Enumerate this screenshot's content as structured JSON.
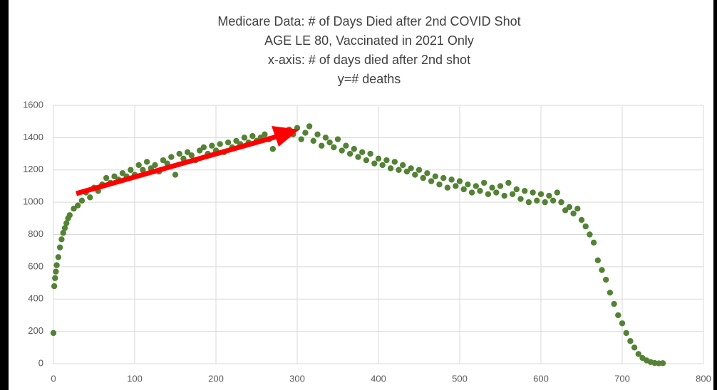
{
  "chart_data": {
    "type": "scatter",
    "title": "Medicare Data: # of Days Died after 2nd COVID Shot",
    "subtitle": [
      "AGE LE 80, Vaccinated in 2021 Only",
      "x-axis: # of days died after 2nd shot",
      "y=# deaths"
    ],
    "color": "#548235",
    "grid": true,
    "xlim": [
      0,
      800
    ],
    "xticks": [
      0,
      100,
      200,
      300,
      400,
      500,
      600,
      700,
      800
    ],
    "ylim": [
      0,
      1600
    ],
    "yticks": [
      0,
      200,
      400,
      600,
      800,
      1000,
      1200,
      1400,
      1600
    ],
    "x": [
      0,
      1,
      2,
      3,
      4,
      6,
      8,
      10,
      12,
      14,
      16,
      18,
      20,
      25,
      30,
      35,
      40,
      45,
      50,
      55,
      60,
      65,
      70,
      75,
      80,
      85,
      90,
      95,
      100,
      105,
      110,
      115,
      120,
      125,
      130,
      135,
      140,
      145,
      150,
      155,
      160,
      165,
      170,
      175,
      180,
      185,
      190,
      195,
      200,
      205,
      210,
      215,
      220,
      225,
      230,
      235,
      240,
      245,
      250,
      255,
      260,
      265,
      270,
      275,
      280,
      285,
      290,
      295,
      300,
      305,
      310,
      315,
      320,
      325,
      330,
      335,
      340,
      345,
      350,
      355,
      360,
      365,
      370,
      375,
      380,
      385,
      390,
      395,
      400,
      405,
      410,
      415,
      420,
      425,
      430,
      435,
      440,
      445,
      450,
      455,
      460,
      465,
      470,
      475,
      480,
      485,
      490,
      495,
      500,
      505,
      510,
      515,
      520,
      525,
      530,
      535,
      540,
      545,
      550,
      555,
      560,
      565,
      570,
      575,
      580,
      585,
      590,
      595,
      600,
      605,
      610,
      615,
      620,
      625,
      630,
      635,
      640,
      645,
      650,
      655,
      660,
      665,
      670,
      675,
      680,
      685,
      690,
      695,
      700,
      705,
      710,
      715,
      720,
      725,
      730,
      735,
      740,
      745,
      750
    ],
    "values": [
      190,
      480,
      530,
      570,
      610,
      660,
      720,
      770,
      810,
      840,
      870,
      900,
      920,
      960,
      980,
      1010,
      1060,
      1030,
      1090,
      1070,
      1110,
      1150,
      1120,
      1160,
      1140,
      1180,
      1160,
      1200,
      1170,
      1230,
      1200,
      1250,
      1210,
      1230,
      1190,
      1260,
      1240,
      1280,
      1170,
      1300,
      1270,
      1310,
      1290,
      1260,
      1320,
      1340,
      1300,
      1350,
      1320,
      1360,
      1310,
      1370,
      1340,
      1380,
      1360,
      1400,
      1370,
      1410,
      1380,
      1400,
      1420,
      1390,
      1330,
      1410,
      1440,
      1400,
      1450,
      1420,
      1460,
      1390,
      1430,
      1470,
      1380,
      1420,
      1350,
      1400,
      1370,
      1340,
      1390,
      1320,
      1350,
      1300,
      1330,
      1280,
      1310,
      1260,
      1300,
      1240,
      1270,
      1230,
      1260,
      1210,
      1250,
      1200,
      1230,
      1190,
      1210,
      1170,
      1200,
      1150,
      1180,
      1130,
      1160,
      1110,
      1150,
      1090,
      1140,
      1100,
      1130,
      1080,
      1110,
      1060,
      1100,
      1070,
      1120,
      1050,
      1090,
      1060,
      1100,
      1040,
      1120,
      1050,
      1080,
      1020,
      1070,
      1000,
      1060,
      1010,
      1050,
      1000,
      1040,
      1010,
      1060,
      1000,
      950,
      970,
      930,
      960,
      890,
      850,
      800,
      750,
      640,
      580,
      520,
      440,
      370,
      300,
      250,
      190,
      140,
      100,
      60,
      35,
      20,
      10,
      4,
      2,
      3
    ]
  }
}
